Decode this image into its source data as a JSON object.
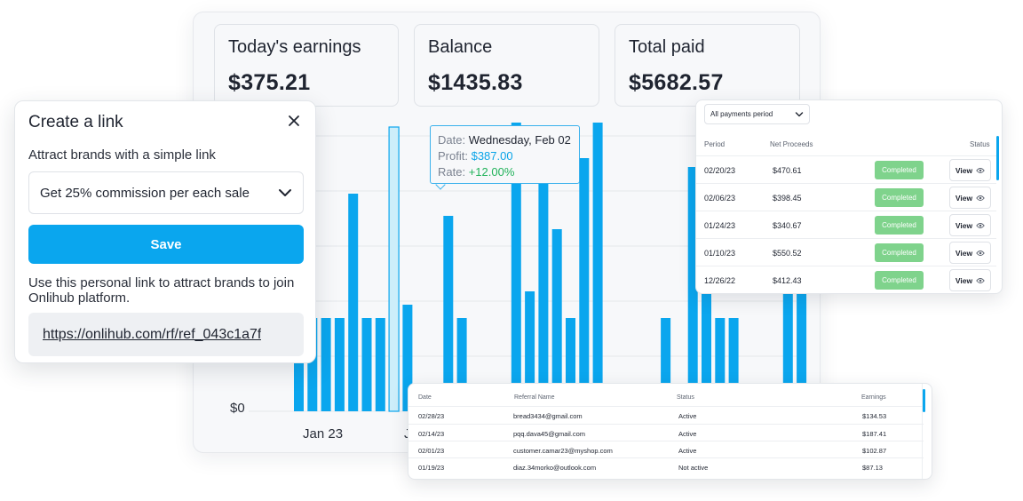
{
  "stats": [
    {
      "label": "Today's earnings",
      "value": "$375.21"
    },
    {
      "label": "Balance",
      "value": "$1435.83"
    },
    {
      "label": "Total paid",
      "value": "$5682.57"
    }
  ],
  "chart_data": {
    "type": "bar",
    "yticks": [
      "$0"
    ],
    "xticks": [
      "Jan 23",
      "J"
    ],
    "accent": "#0aa6ee",
    "highlight_fill": "#cdeefa",
    "values": [
      105,
      105,
      105,
      105,
      245,
      105,
      105,
      0,
      120,
      0,
      0,
      220,
      105,
      0,
      0,
      0,
      325,
      135,
      260,
      205,
      105,
      285,
      325,
      0,
      0,
      0,
      0,
      105,
      0,
      275,
      210,
      105,
      105,
      0,
      0,
      0,
      260,
      270
    ],
    "highlight_index": 7,
    "highlight_value": 320,
    "tooltip": {
      "date_label": "Date:",
      "date": "Wednesday, Feb 02",
      "profit_label": "Profit:",
      "profit": "$387.00",
      "rate_label": "Rate:",
      "rate": "+12.00%"
    }
  },
  "popup": {
    "title": "Create a link",
    "subtitle": "Attract brands with a simple link",
    "selected_option": "Get 25% commission per each sale",
    "save_label": "Save",
    "info": "Use this personal link to attract brands to join Onlihub platform.",
    "link": "https://onlihub.com/rf/ref_043c1a7f"
  },
  "payments": {
    "filter": "All payments period",
    "columns": [
      "Period",
      "Net Proceeds",
      "Status"
    ],
    "view_label": "View",
    "rows": [
      {
        "period": "02/20/23",
        "amount": "$470.61",
        "status": "Completed"
      },
      {
        "period": "02/06/23",
        "amount": "$398.45",
        "status": "Completed"
      },
      {
        "period": "01/24/23",
        "amount": "$340.67",
        "status": "Completed"
      },
      {
        "period": "01/10/23",
        "amount": "$550.52",
        "status": "Completed"
      },
      {
        "period": "12/26/22",
        "amount": "$412.43",
        "status": "Completed"
      }
    ]
  },
  "referrals": {
    "columns": [
      "Date",
      "Referral Name",
      "Status",
      "Earnings"
    ],
    "rows": [
      {
        "date": "02/28/23",
        "name": "bread3434@gmail.com",
        "status": "Active",
        "earnings": "$134.53"
      },
      {
        "date": "02/14/23",
        "name": "pqq.dava45@gmail.com",
        "status": "Active",
        "earnings": "$187.41"
      },
      {
        "date": "02/01/23",
        "name": "customer.camar23@myshop.com",
        "status": "Active",
        "earnings": "$102.87"
      },
      {
        "date": "01/19/23",
        "name": "diaz.34morko@outlook.com",
        "status": "Not active",
        "earnings": "$87.13"
      }
    ]
  }
}
